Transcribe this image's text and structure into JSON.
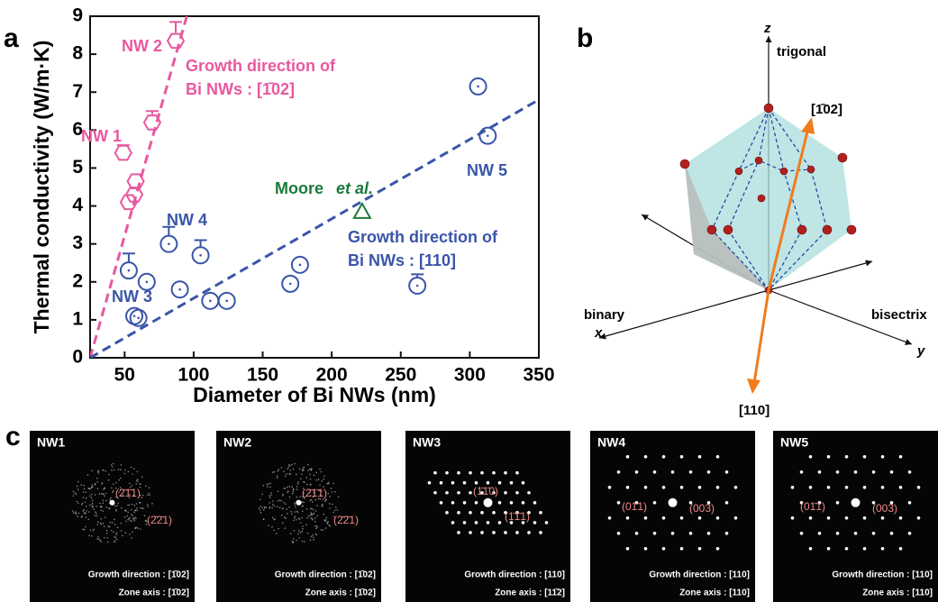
{
  "panel_labels": [
    "a",
    "b",
    "c"
  ],
  "chart_data": {
    "type": "scatter",
    "xlabel": "Diameter of Bi NWs  (nm)",
    "ylabel": "Thermal conductivity (W/m·K)",
    "xlim": [
      25,
      350
    ],
    "ylim": [
      0,
      9
    ],
    "xticks": [
      50,
      100,
      150,
      200,
      250,
      300,
      350
    ],
    "yticks": [
      0,
      1,
      2,
      3,
      4,
      5,
      6,
      7,
      8,
      9
    ],
    "series": [
      {
        "color": "#e8589f",
        "marker": "hexagon",
        "x": [
          49,
          53,
          57,
          58,
          70,
          87
        ],
        "values": [
          5.4,
          4.1,
          4.3,
          4.65,
          6.2,
          8.35
        ],
        "errors": [
          0.2,
          null,
          null,
          null,
          0.3,
          0.5
        ]
      },
      {
        "color": "#3a55a8",
        "marker": "circle",
        "x": [
          53,
          66,
          57,
          60,
          82,
          90,
          105,
          112,
          124,
          170,
          177,
          262,
          306,
          313
        ],
        "values": [
          2.3,
          2.0,
          1.1,
          1.05,
          3.0,
          1.8,
          2.7,
          1.5,
          1.5,
          1.95,
          2.45,
          1.9,
          7.15,
          5.85
        ],
        "errors": [
          0.45,
          null,
          null,
          null,
          0.45,
          null,
          0.4,
          null,
          null,
          null,
          null,
          0.3,
          null,
          null
        ]
      },
      {
        "color": "#1a7a3a",
        "marker": "triangle",
        "x": [
          222
        ],
        "values": [
          3.85
        ],
        "errors": [
          null
        ]
      }
    ],
    "fits": [
      {
        "color": "#e8589f",
        "x": [
          25,
          95
        ],
        "values": [
          0,
          9
        ]
      },
      {
        "color": "#3a55a8",
        "x": [
          25,
          350
        ],
        "values": [
          0,
          6.8
        ]
      }
    ],
    "annotations": [
      {
        "text": "NW 2",
        "color": "#e8589f"
      },
      {
        "text": "Growth direction of",
        "color": "#e8589f"
      },
      {
        "text": "Bi NWs : [1̄02]",
        "color": "#e8589f"
      },
      {
        "text": "NW 1",
        "color": "#e8589f"
      },
      {
        "text": "Moore",
        "color": "#1a7a3a"
      },
      {
        "text": "et al.",
        "color": "#1a7a3a"
      },
      {
        "text": "NW 5",
        "color": "#3a55a8"
      },
      {
        "text": "Growth direction of",
        "color": "#3a55a8"
      },
      {
        "text": "Bi NWs : [110]",
        "color": "#3a55a8"
      },
      {
        "text": "NW 4",
        "color": "#3a55a8"
      },
      {
        "text": "NW 3",
        "color": "#3a55a8"
      }
    ]
  },
  "diagram": {
    "z": "z",
    "trigonal": "trigonal",
    "direction_up": "[1̄02]",
    "binary": "binary",
    "x": "x",
    "bisectrix": "bisectrix",
    "y": "y",
    "direction_down": "[110]"
  },
  "micrographs": [
    {
      "title": "NW1",
      "spots": [
        "(2̄1̄1)",
        "(2̄2̄1)"
      ],
      "growth": "Growth direction : [1̄02]",
      "zone": "Zone axis : [1̄02]"
    },
    {
      "title": "NW2",
      "spots": [
        "(2̄1̄1)",
        "(2̄2̄1)"
      ],
      "growth": "Growth direction : [1̄02]",
      "zone": "Zone axis : [1̄02]"
    },
    {
      "title": "NW3",
      "spots": [
        "(1̄1̄0)",
        "(1̄1̄1)"
      ],
      "growth": "Growth direction : [110]",
      "zone": "Zone axis : [11̄2]"
    },
    {
      "title": "NW4",
      "spots": [
        "(01̄1)",
        "(003)"
      ],
      "growth": "Growth direction : [110]",
      "zone": "Zone axis : [110]"
    },
    {
      "title": "NW5",
      "spots": [
        "(01̄1)",
        "(003)"
      ],
      "growth": "Growth direction : [110]",
      "zone": "Zone axis : [110]"
    }
  ]
}
